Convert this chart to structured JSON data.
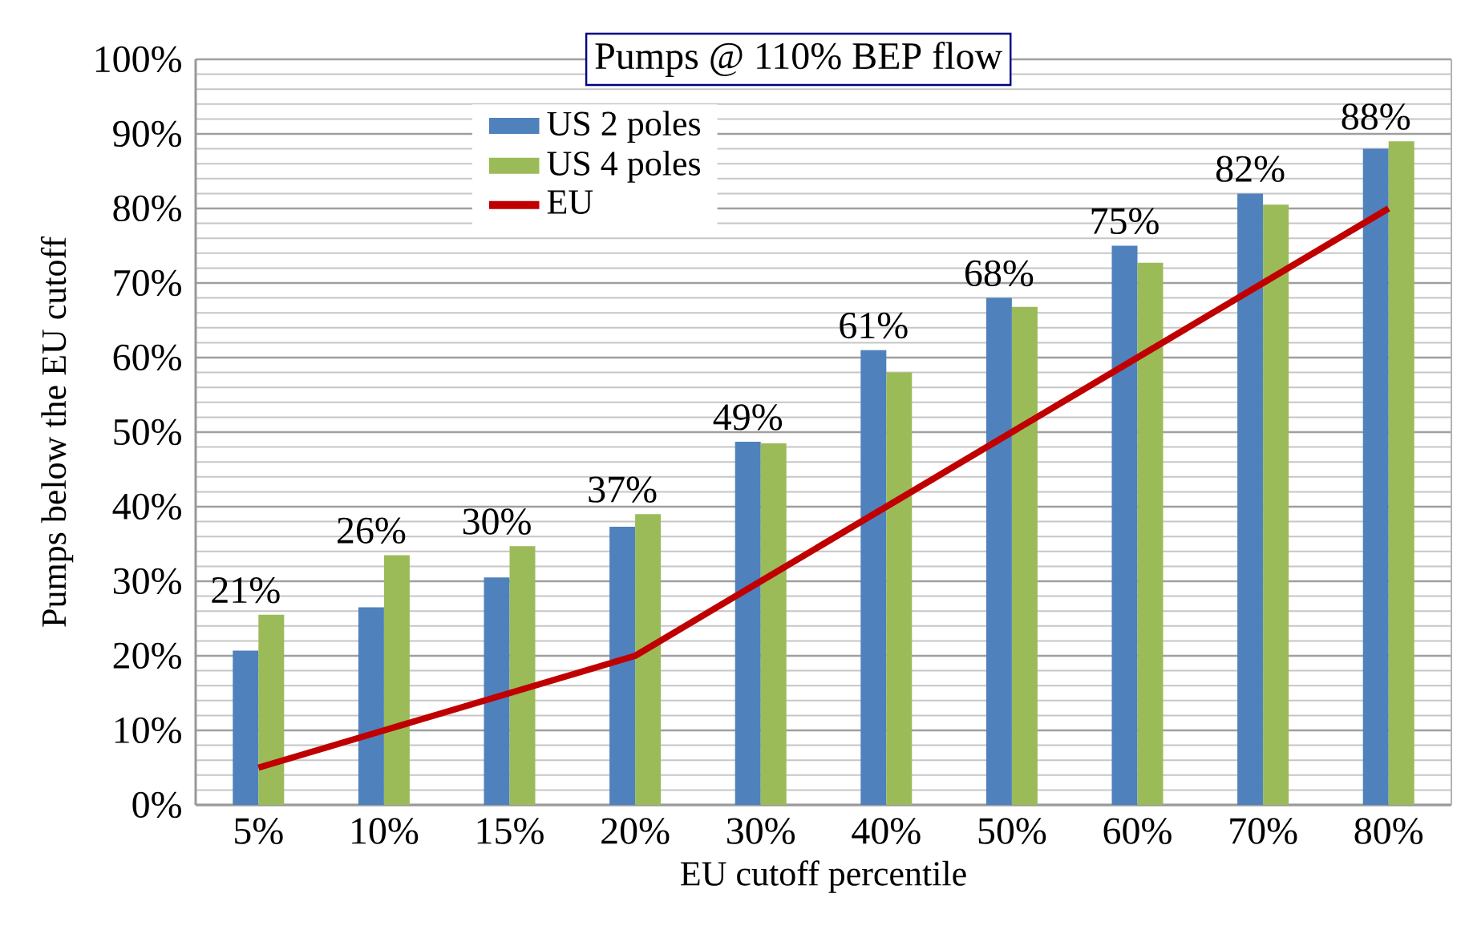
{
  "chart_data": {
    "type": "bar",
    "title": "Pumps @ 110% BEP flow",
    "xlabel": "EU cutoff percentile",
    "ylabel": "Pumps below the EU cutoff",
    "categories": [
      "5%",
      "10%",
      "15%",
      "20%",
      "30%",
      "40%",
      "50%",
      "60%",
      "70%",
      "80%"
    ],
    "series": [
      {
        "name": "US 2 poles",
        "color": "#4f81bd",
        "values": [
          20.7,
          26.5,
          30.5,
          37.3,
          48.7,
          61,
          68,
          75,
          82,
          88
        ],
        "value_labels": [
          "21%",
          "26%",
          "30%",
          "37%",
          "49%",
          "61%",
          "68%",
          "75%",
          "82%",
          "88%"
        ]
      },
      {
        "name": "US 4 poles",
        "color": "#9bbb59",
        "values": [
          25.5,
          33.5,
          34.7,
          39,
          48.5,
          58,
          66.8,
          72.7,
          80.5,
          89
        ]
      },
      {
        "name": "EU",
        "type": "line",
        "color": "#c00000",
        "values": [
          5,
          10,
          15,
          20,
          30,
          40,
          50,
          60,
          70,
          80
        ]
      }
    ],
    "ylim": [
      0,
      100
    ],
    "yticks": [
      {
        "value": 0,
        "label": "0%"
      },
      {
        "value": 10,
        "label": "10%"
      },
      {
        "value": 20,
        "label": "20%"
      },
      {
        "value": 30,
        "label": "30%"
      },
      {
        "value": 40,
        "label": "40%"
      },
      {
        "value": 50,
        "label": "50%"
      },
      {
        "value": 60,
        "label": "60%"
      },
      {
        "value": 70,
        "label": "70%"
      },
      {
        "value": 80,
        "label": "80%"
      },
      {
        "value": 90,
        "label": "90%"
      },
      {
        "value": 100,
        "label": "100%"
      }
    ],
    "grid": "y",
    "legend": "top left",
    "marker": "none",
    "line_style": "solid"
  }
}
